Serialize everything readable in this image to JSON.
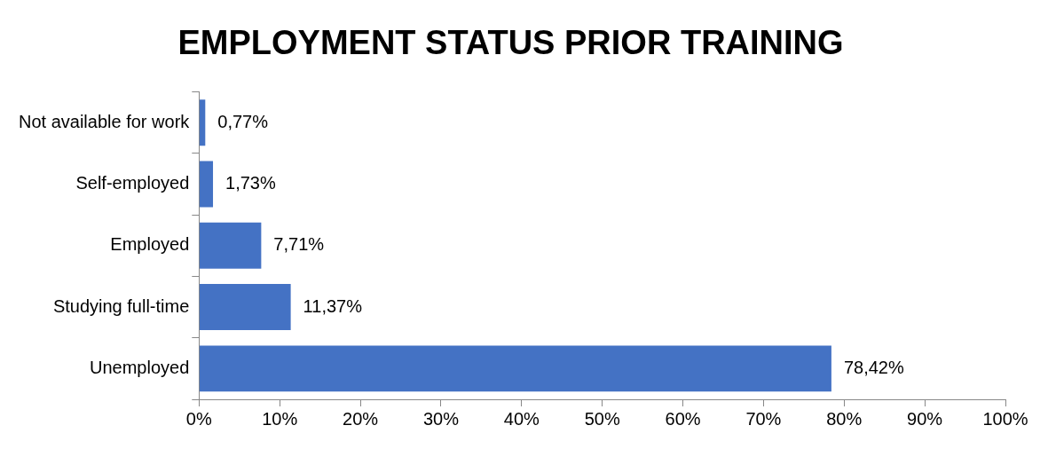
{
  "chart_data": {
    "type": "bar",
    "orientation": "horizontal",
    "title": "EMPLOYMENT STATUS PRIOR TRAINING",
    "categories": [
      "Not available for work",
      "Self-employed",
      "Employed",
      "Studying full-time",
      "Unemployed"
    ],
    "values": [
      0.77,
      1.73,
      7.71,
      11.37,
      78.42
    ],
    "value_labels": [
      "0,77%",
      "1,73%",
      "7,71%",
      "11,37%",
      "78,42%"
    ],
    "color": "#4472c4",
    "xlim": [
      0,
      100
    ],
    "xticks": [
      {
        "value": 0,
        "label": "0%"
      },
      {
        "value": 10,
        "label": "10%"
      },
      {
        "value": 20,
        "label": "20%"
      },
      {
        "value": 30,
        "label": "30%"
      },
      {
        "value": 40,
        "label": "40%"
      },
      {
        "value": 50,
        "label": "50%"
      },
      {
        "value": 60,
        "label": "60%"
      },
      {
        "value": 70,
        "label": "70%"
      },
      {
        "value": 80,
        "label": "80%"
      },
      {
        "value": 90,
        "label": "90%"
      },
      {
        "value": 100,
        "label": "100%"
      }
    ],
    "legend": false
  }
}
